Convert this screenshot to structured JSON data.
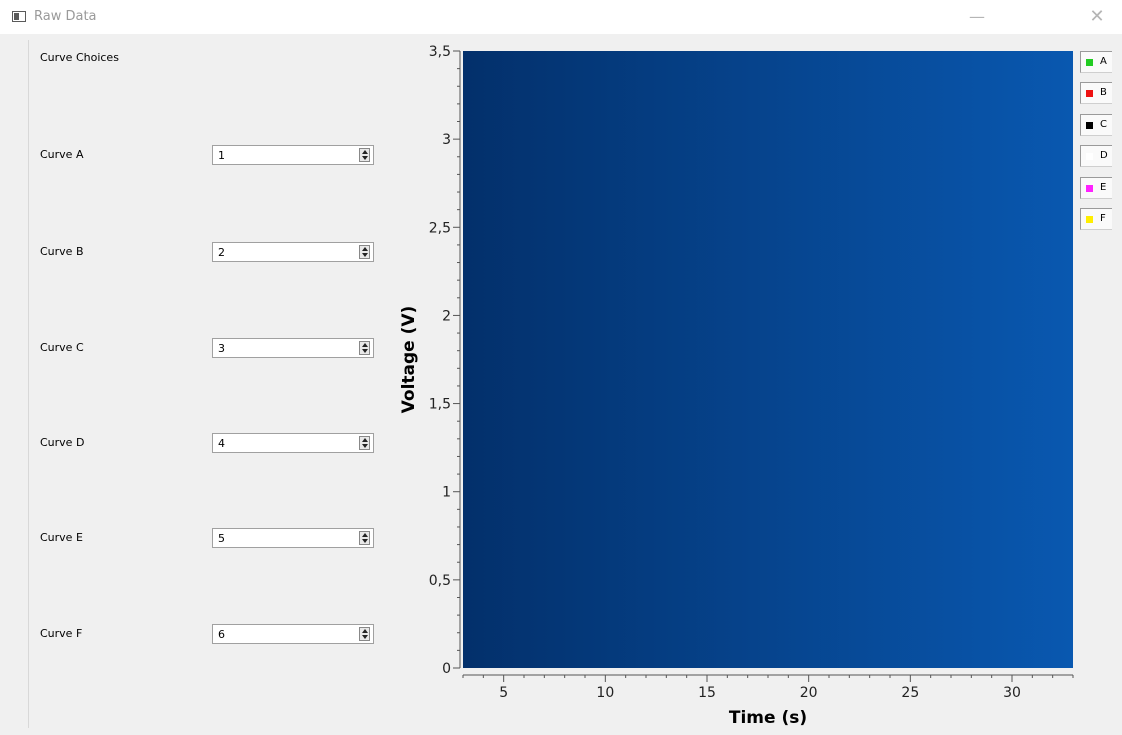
{
  "window": {
    "title": "Raw Data",
    "minimize_glyph": "—",
    "close_glyph": "✕"
  },
  "panel": {
    "title": "Curve Choices",
    "curves": [
      {
        "label": "Curve A",
        "value": "1"
      },
      {
        "label": "Curve B",
        "value": "2"
      },
      {
        "label": "Curve C",
        "value": "3"
      },
      {
        "label": "Curve D",
        "value": "4"
      },
      {
        "label": "Curve E",
        "value": "5"
      },
      {
        "label": "Curve F",
        "value": "6"
      }
    ]
  },
  "legend": [
    {
      "label": "A",
      "color": "#22cc22"
    },
    {
      "label": "B",
      "color": "#ee1111"
    },
    {
      "label": "C",
      "color": "#000000"
    },
    {
      "label": "D",
      "color": "#ffffff"
    },
    {
      "label": "E",
      "color": "#ff22ff"
    },
    {
      "label": "F",
      "color": "#ffee00"
    }
  ],
  "chart_data": {
    "type": "line",
    "series": [],
    "xlabel": "Time (s)",
    "ylabel": "Voltage (V)",
    "xlim": [
      3,
      33
    ],
    "ylim": [
      0,
      3.5
    ],
    "x_ticks": [
      "5",
      "10",
      "15",
      "20",
      "25",
      "30"
    ],
    "y_ticks": [
      "0",
      "0,5",
      "1",
      "1,5",
      "2",
      "2,5",
      "3",
      "3,5"
    ],
    "background": [
      "#03306b",
      "#0958b0"
    ]
  }
}
